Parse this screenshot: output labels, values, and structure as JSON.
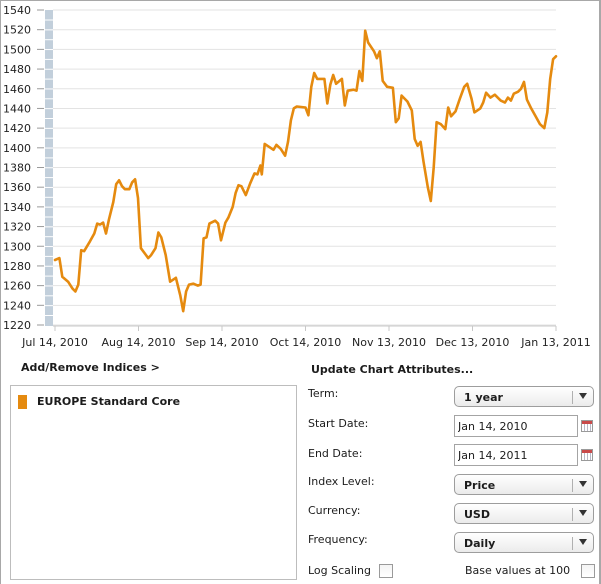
{
  "chart_data": {
    "type": "line",
    "title": "",
    "xlabel": "",
    "ylabel": "",
    "ylim": [
      1220,
      1540
    ],
    "yticks": [
      1220,
      1240,
      1260,
      1280,
      1300,
      1320,
      1340,
      1360,
      1380,
      1400,
      1420,
      1440,
      1460,
      1480,
      1500,
      1520,
      1540
    ],
    "xticks": [
      "Jul 14, 2010",
      "Aug 14, 2010",
      "Sep 14, 2010",
      "Oct 14, 2010",
      "Nov 13, 2010",
      "Dec 13, 2010",
      "Jan 13, 2011"
    ],
    "grid": true,
    "line_color": "#e58a0f",
    "series": [
      {
        "name": "EUROPE Standard Core",
        "points": [
          [
            0,
            1286
          ],
          [
            3,
            1288
          ],
          [
            5,
            1269
          ],
          [
            9,
            1264
          ],
          [
            12,
            1257
          ],
          [
            14,
            1254
          ],
          [
            16,
            1261
          ],
          [
            18,
            1296
          ],
          [
            20,
            1295
          ],
          [
            24,
            1305
          ],
          [
            27,
            1313
          ],
          [
            29,
            1323
          ],
          [
            31,
            1322
          ],
          [
            33,
            1324
          ],
          [
            35,
            1313
          ],
          [
            37,
            1327
          ],
          [
            40,
            1345
          ],
          [
            42,
            1363
          ],
          [
            44,
            1367
          ],
          [
            46,
            1361
          ],
          [
            48,
            1358
          ],
          [
            51,
            1358
          ],
          [
            53,
            1365
          ],
          [
            55,
            1368
          ],
          [
            57,
            1349
          ],
          [
            59,
            1298
          ],
          [
            62,
            1292
          ],
          [
            64,
            1288
          ],
          [
            66,
            1291
          ],
          [
            69,
            1298
          ],
          [
            71,
            1314
          ],
          [
            73,
            1309
          ],
          [
            76,
            1291
          ],
          [
            79,
            1264
          ],
          [
            83,
            1268
          ],
          [
            86,
            1250
          ],
          [
            88,
            1234
          ],
          [
            90,
            1254
          ],
          [
            92,
            1261
          ],
          [
            95,
            1262
          ],
          [
            98,
            1260
          ],
          [
            100,
            1261
          ],
          [
            102,
            1308
          ],
          [
            104,
            1309
          ],
          [
            106,
            1323
          ],
          [
            110,
            1326
          ],
          [
            112,
            1323
          ],
          [
            114,
            1306
          ],
          [
            117,
            1324
          ],
          [
            119,
            1329
          ],
          [
            122,
            1340
          ],
          [
            124,
            1354
          ],
          [
            126,
            1362
          ],
          [
            128,
            1361
          ],
          [
            131,
            1352
          ],
          [
            134,
            1364
          ],
          [
            137,
            1374
          ],
          [
            139,
            1373
          ],
          [
            141,
            1382
          ],
          [
            142,
            1373
          ],
          [
            144,
            1404
          ],
          [
            148,
            1400
          ],
          [
            150,
            1398
          ],
          [
            152,
            1403
          ],
          [
            155,
            1399
          ],
          [
            158,
            1392
          ],
          [
            160,
            1406
          ],
          [
            162,
            1428
          ],
          [
            164,
            1440
          ],
          [
            166,
            1442
          ],
          [
            172,
            1441
          ],
          [
            174,
            1433
          ],
          [
            176,
            1462
          ],
          [
            178,
            1476
          ],
          [
            180,
            1470
          ],
          [
            185,
            1470
          ],
          [
            187,
            1445
          ],
          [
            189,
            1464
          ],
          [
            191,
            1474
          ],
          [
            193,
            1465
          ],
          [
            197,
            1470
          ],
          [
            199,
            1443
          ],
          [
            201,
            1458
          ],
          [
            205,
            1459
          ],
          [
            207,
            1458
          ],
          [
            209,
            1478
          ],
          [
            211,
            1468
          ],
          [
            213,
            1519
          ],
          [
            215,
            1507
          ],
          [
            219,
            1498
          ],
          [
            221,
            1491
          ],
          [
            223,
            1498
          ],
          [
            225,
            1468
          ],
          [
            228,
            1462
          ],
          [
            232,
            1461
          ],
          [
            234,
            1426
          ],
          [
            236,
            1430
          ],
          [
            238,
            1453
          ],
          [
            242,
            1447
          ],
          [
            245,
            1438
          ],
          [
            247,
            1409
          ],
          [
            249,
            1402
          ],
          [
            251,
            1406
          ],
          [
            253,
            1386
          ],
          [
            256,
            1360
          ],
          [
            258,
            1346
          ],
          [
            260,
            1380
          ],
          [
            262,
            1426
          ],
          [
            265,
            1424
          ],
          [
            268,
            1419
          ],
          [
            270,
            1441
          ],
          [
            272,
            1432
          ],
          [
            275,
            1437
          ],
          [
            278,
            1450
          ],
          [
            281,
            1462
          ],
          [
            283,
            1465
          ],
          [
            286,
            1450
          ],
          [
            288,
            1436
          ],
          [
            292,
            1440
          ],
          [
            294,
            1446
          ],
          [
            296,
            1456
          ],
          [
            299,
            1451
          ],
          [
            302,
            1454
          ],
          [
            306,
            1448
          ],
          [
            309,
            1446
          ],
          [
            311,
            1451
          ],
          [
            313,
            1448
          ],
          [
            315,
            1455
          ],
          [
            318,
            1457
          ],
          [
            320,
            1460
          ],
          [
            322,
            1467
          ],
          [
            324,
            1449
          ],
          [
            327,
            1440
          ],
          [
            330,
            1432
          ],
          [
            333,
            1424
          ],
          [
            336,
            1420
          ],
          [
            338,
            1436
          ],
          [
            340,
            1470
          ],
          [
            342,
            1490
          ],
          [
            344,
            1493
          ]
        ],
        "x_unit": "days since Jul 14, 2010 (approx)"
      }
    ]
  },
  "indices": {
    "header": "Add/Remove Indices >",
    "items": [
      {
        "label": "EUROPE Standard Core",
        "color": "#e58a0f"
      }
    ]
  },
  "attributes": {
    "header": "Update Chart Attributes...",
    "term": {
      "label": "Term:",
      "value": "1 year"
    },
    "start_date": {
      "label": "Start Date:",
      "value": "Jan 14, 2010"
    },
    "end_date": {
      "label": "End Date:",
      "value": "Jan 14, 2011"
    },
    "index_level": {
      "label": "Index Level:",
      "value": "Price"
    },
    "currency": {
      "label": "Currency:",
      "value": "USD"
    },
    "frequency": {
      "label": "Frequency:",
      "value": "Daily"
    },
    "log_scaling": {
      "label": "Log Scaling",
      "checked": false
    },
    "base_values": {
      "label": "Base values at 100",
      "checked": false
    }
  }
}
